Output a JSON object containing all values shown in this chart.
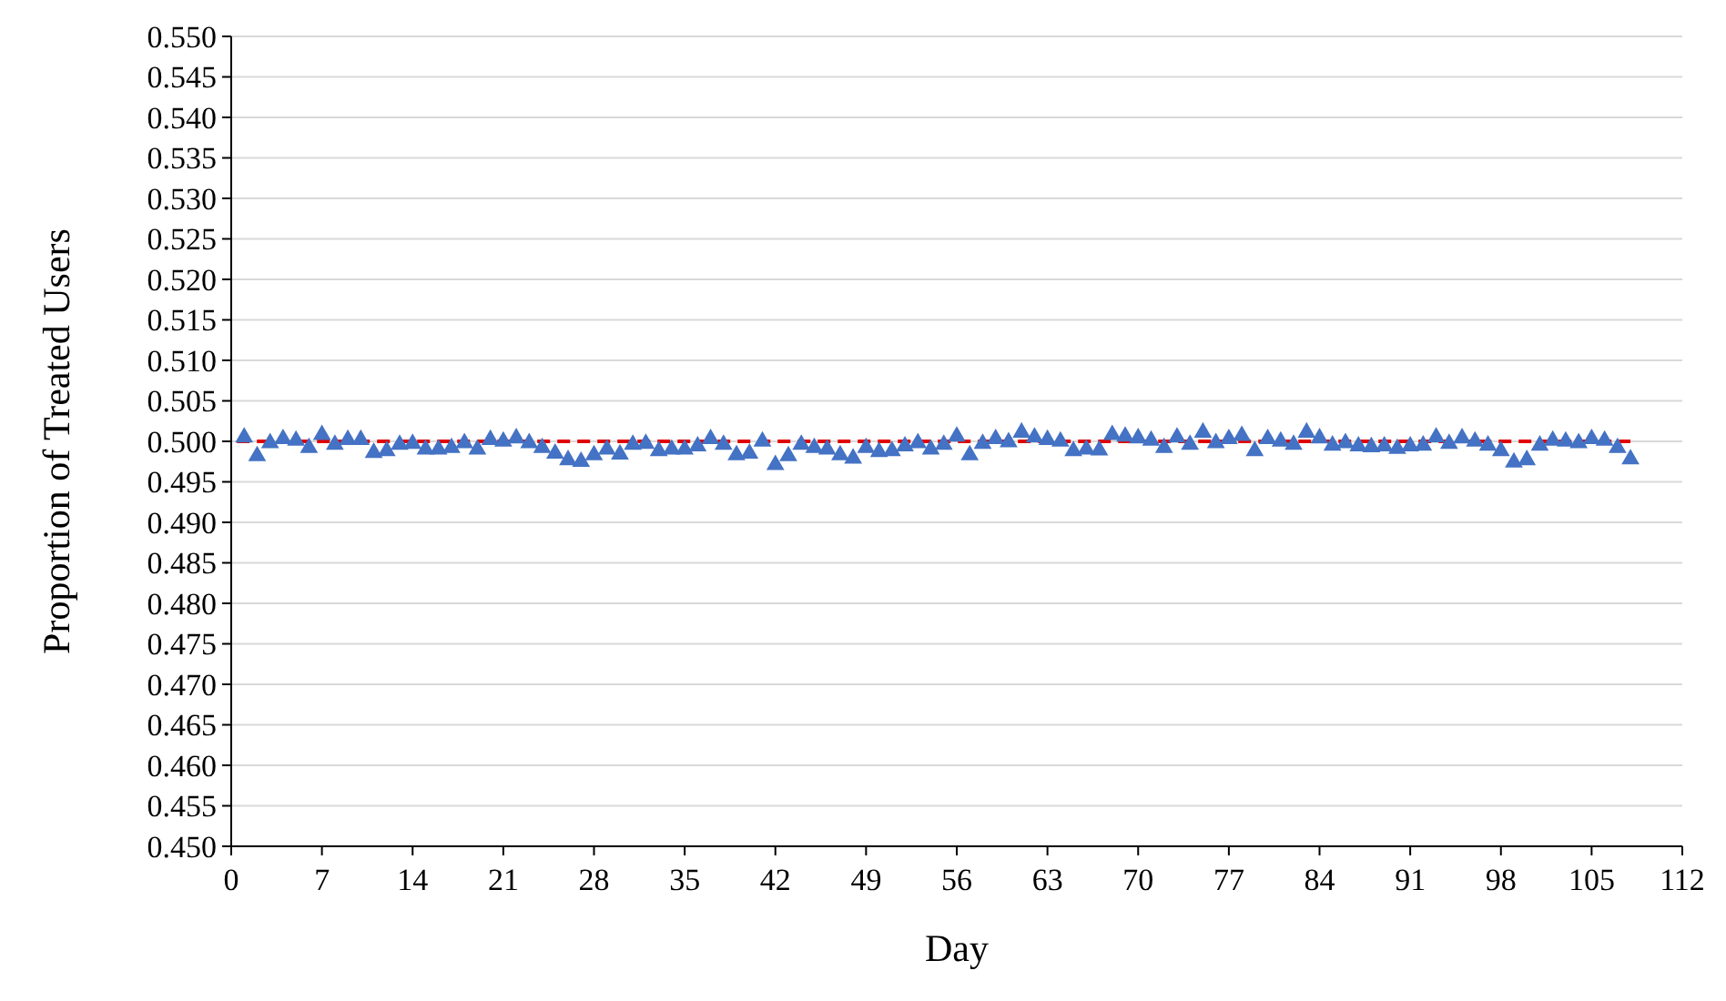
{
  "chart_data": {
    "type": "scatter",
    "xlabel": "Day",
    "ylabel": "Proportion of Treated Users",
    "x": [
      1,
      2,
      3,
      4,
      5,
      6,
      7,
      8,
      9,
      10,
      11,
      12,
      13,
      14,
      15,
      16,
      17,
      18,
      19,
      20,
      21,
      22,
      23,
      24,
      25,
      26,
      27,
      28,
      29,
      30,
      31,
      32,
      33,
      34,
      35,
      36,
      37,
      38,
      39,
      40,
      41,
      42,
      43,
      44,
      45,
      46,
      47,
      48,
      49,
      50,
      51,
      52,
      53,
      54,
      55,
      56,
      57,
      58,
      59,
      60,
      61,
      62,
      63,
      64,
      65,
      66,
      67,
      68,
      69,
      70,
      71,
      72,
      73,
      74,
      75,
      76,
      77,
      78,
      79,
      80,
      81,
      82,
      83,
      84,
      85,
      86,
      87,
      88,
      89,
      90,
      91,
      92,
      93,
      94,
      95,
      96,
      97,
      98,
      99,
      100,
      101,
      102,
      103,
      104,
      105,
      106,
      107,
      108
    ],
    "series": [
      {
        "color": "#4472c4",
        "marker": "triangle",
        "values": [
          0.5005,
          0.4982,
          0.4998,
          0.5003,
          0.5001,
          0.4992,
          0.5008,
          0.4996,
          0.5002,
          0.5002,
          0.4986,
          0.4988,
          0.4996,
          0.4997,
          0.499,
          0.499,
          0.4992,
          0.4998,
          0.499,
          0.5002,
          0.5,
          0.5004,
          0.4998,
          0.4992,
          0.4985,
          0.4977,
          0.4975,
          0.4983,
          0.499,
          0.4984,
          0.4996,
          0.4997,
          0.4988,
          0.499,
          0.499,
          0.4994,
          0.5003,
          0.4996,
          0.4983,
          0.4985,
          0.5,
          0.4971,
          0.4982,
          0.4996,
          0.4992,
          0.499,
          0.4983,
          0.4979,
          0.4992,
          0.4987,
          0.4988,
          0.4994,
          0.4998,
          0.499,
          0.4996,
          0.5006,
          0.4983,
          0.4997,
          0.5003,
          0.4999,
          0.5011,
          0.5005,
          0.5002,
          0.5,
          0.4988,
          0.499,
          0.4989,
          0.5008,
          0.5006,
          0.5004,
          0.5001,
          0.4992,
          0.5005,
          0.4996,
          0.5011,
          0.4998,
          0.5003,
          0.5007,
          0.4988,
          0.5003,
          0.5,
          0.4996,
          0.5011,
          0.5004,
          0.4995,
          0.4998,
          0.4994,
          0.4993,
          0.4994,
          0.4991,
          0.4994,
          0.4995,
          0.5005,
          0.4997,
          0.5004,
          0.5,
          0.4995,
          0.4988,
          0.4974,
          0.4977,
          0.4995,
          0.5001,
          0.5,
          0.4998,
          0.5003,
          0.5001,
          0.4992,
          0.4978
        ]
      }
    ],
    "ref_lines": [
      {
        "axis": "y",
        "value": 0.5,
        "color": "#e00000",
        "line_style": "dashed"
      }
    ],
    "xlim": [
      0,
      112
    ],
    "xticks": [
      0,
      7,
      14,
      21,
      28,
      35,
      42,
      49,
      56,
      63,
      70,
      77,
      84,
      91,
      98,
      105,
      112
    ],
    "ylim": [
      0.45,
      0.55
    ],
    "yticks": [
      {
        "value": 0.45,
        "label": "0.450"
      },
      {
        "value": 0.455,
        "label": "0.455"
      },
      {
        "value": 0.46,
        "label": "0.460"
      },
      {
        "value": 0.465,
        "label": "0.465"
      },
      {
        "value": 0.47,
        "label": "0.470"
      },
      {
        "value": 0.475,
        "label": "0.475"
      },
      {
        "value": 0.48,
        "label": "0.480"
      },
      {
        "value": 0.485,
        "label": "0.485"
      },
      {
        "value": 0.49,
        "label": "0.490"
      },
      {
        "value": 0.495,
        "label": "0.495"
      },
      {
        "value": 0.5,
        "label": "0.500"
      },
      {
        "value": 0.505,
        "label": "0.505"
      },
      {
        "value": 0.51,
        "label": "0.510"
      },
      {
        "value": 0.515,
        "label": "0.515"
      },
      {
        "value": 0.52,
        "label": "0.520"
      },
      {
        "value": 0.525,
        "label": "0.525"
      },
      {
        "value": 0.53,
        "label": "0.530"
      },
      {
        "value": 0.535,
        "label": "0.535"
      },
      {
        "value": 0.54,
        "label": "0.540"
      },
      {
        "value": 0.545,
        "label": "0.545"
      },
      {
        "value": 0.55,
        "label": "0.550"
      }
    ],
    "grid": "y"
  }
}
